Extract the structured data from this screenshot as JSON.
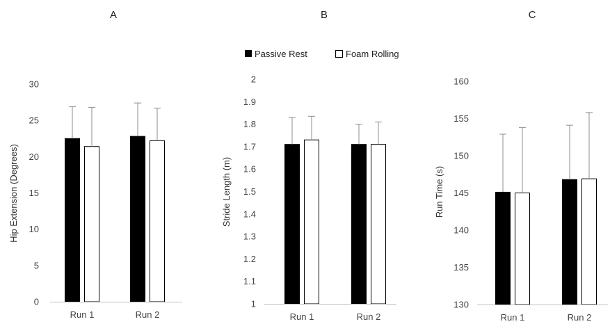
{
  "legend": {
    "passive_label": "Passive Rest",
    "foam_label": "Foam Rolling"
  },
  "colors": {
    "passive": "#000000",
    "foam": "#ffffff",
    "outline": "#000000",
    "error_bar": "#8c8c8c"
  },
  "chart_data": [
    {
      "type": "bar",
      "title": "A",
      "ylabel": "Hip Extension (Degrees)",
      "xlabel": "",
      "categories": [
        "Run 1",
        "Run 2"
      ],
      "ylim": [
        0,
        30
      ],
      "yticks": [
        0,
        5,
        10,
        15,
        20,
        25,
        30
      ],
      "tick_labels": [
        "0",
        "5",
        "10",
        "15",
        "20",
        "25",
        "30"
      ],
      "series": [
        {
          "name": "Passive Rest",
          "values": [
            22.5,
            22.8
          ],
          "errors": [
            4.4,
            4.6
          ]
        },
        {
          "name": "Foam Rolling",
          "values": [
            21.4,
            22.2
          ],
          "errors": [
            5.4,
            4.5
          ]
        }
      ]
    },
    {
      "type": "bar",
      "title": "B",
      "ylabel": "Stride Length (m)",
      "xlabel": "",
      "categories": [
        "Run 1",
        "Run 2"
      ],
      "ylim": [
        1,
        2
      ],
      "yticks": [
        1,
        1.1,
        1.2,
        1.3,
        1.4,
        1.5,
        1.6,
        1.7,
        1.8,
        1.9,
        2
      ],
      "tick_labels": [
        "1",
        "1.1",
        "1.2",
        "1.3",
        "1.4",
        "1.5",
        "1.6",
        "1.7",
        "1.8",
        "1.9",
        "2"
      ],
      "series": [
        {
          "name": "Passive Rest",
          "values": [
            1.71,
            1.71
          ],
          "errors": [
            0.12,
            0.09
          ]
        },
        {
          "name": "Foam Rolling",
          "values": [
            1.73,
            1.71
          ],
          "errors": [
            0.105,
            0.1
          ]
        }
      ]
    },
    {
      "type": "bar",
      "title": "C",
      "ylabel": "Run Time (s)",
      "xlabel": "",
      "categories": [
        "Run 1",
        "Run 2"
      ],
      "ylim": [
        130,
        160
      ],
      "yticks": [
        130,
        135,
        140,
        145,
        150,
        155,
        160
      ],
      "tick_labels": [
        "130",
        "135",
        "140",
        "145",
        "150",
        "155",
        "160"
      ],
      "series": [
        {
          "name": "Passive Rest",
          "values": [
            145.1,
            146.8
          ],
          "errors": [
            7.8,
            7.3
          ]
        },
        {
          "name": "Foam Rolling",
          "values": [
            145.0,
            146.9
          ],
          "errors": [
            8.8,
            8.9
          ]
        }
      ]
    }
  ]
}
